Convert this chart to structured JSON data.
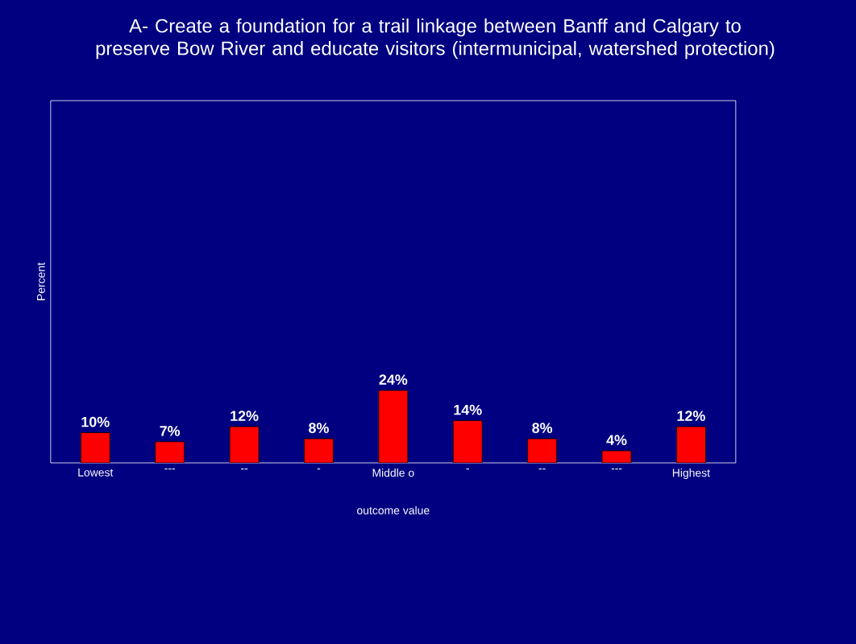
{
  "chart_data": {
    "type": "bar",
    "title": "A-     Create a foundation for a trail linkage between Banff and Calgary to preserve Bow River and educate visitors (intermunicipal, watershed protection)",
    "xlabel": "outcome value",
    "ylabel": "Percent",
    "categories": [
      "Lowest",
      "---",
      "--",
      "-",
      "Middle o",
      "-",
      "--",
      "---",
      "Highest"
    ],
    "values": [
      10,
      7,
      12,
      8,
      24,
      14,
      8,
      4,
      12
    ],
    "value_labels": [
      "10%",
      "7%",
      "12%",
      "8%",
      "24%",
      "14%",
      "8%",
      "4%",
      "12%"
    ],
    "color": "#ff0000",
    "ylim": [
      0,
      120
    ],
    "tick_labels": "x"
  }
}
